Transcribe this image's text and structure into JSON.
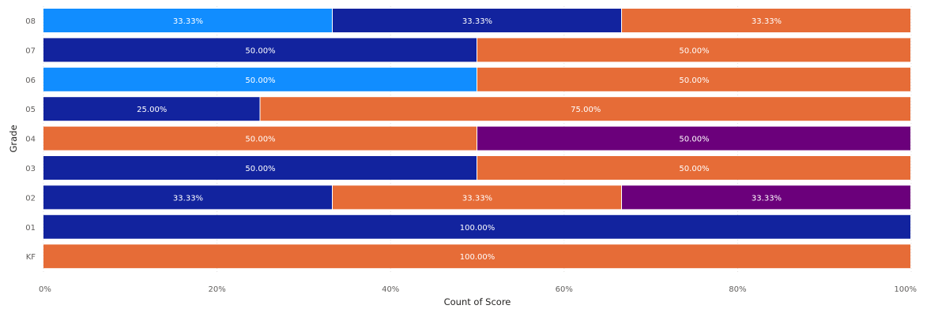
{
  "chart_data": {
    "type": "bar",
    "orientation": "horizontal",
    "stacked": "100%",
    "xlabel": "Count of Score",
    "ylabel": "Grade",
    "xlim": [
      0,
      100
    ],
    "x_ticks": [
      "0%",
      "20%",
      "40%",
      "60%",
      "80%",
      "100%"
    ],
    "grid": true,
    "legend": "none",
    "categories": [
      "08",
      "07",
      "06",
      "05",
      "04",
      "03",
      "02",
      "01",
      "KF"
    ],
    "rows": [
      {
        "segments": [
          {
            "value": 33.33,
            "label": "33.33%",
            "color": "#118dff"
          },
          {
            "value": 33.33,
            "label": "33.33%",
            "color": "#12239e"
          },
          {
            "value": 33.33,
            "label": "33.33%",
            "color": "#e66c37"
          }
        ]
      },
      {
        "segments": [
          {
            "value": 50.0,
            "label": "50.00%",
            "color": "#12239e"
          },
          {
            "value": 50.0,
            "label": "50.00%",
            "color": "#e66c37"
          }
        ]
      },
      {
        "segments": [
          {
            "value": 50.0,
            "label": "50.00%",
            "color": "#118dff"
          },
          {
            "value": 50.0,
            "label": "50.00%",
            "color": "#e66c37"
          }
        ]
      },
      {
        "segments": [
          {
            "value": 25.0,
            "label": "25.00%",
            "color": "#12239e"
          },
          {
            "value": 75.0,
            "label": "75.00%",
            "color": "#e66c37"
          }
        ]
      },
      {
        "segments": [
          {
            "value": 50.0,
            "label": "50.00%",
            "color": "#e66c37"
          },
          {
            "value": 50.0,
            "label": "50.00%",
            "color": "#6b007b"
          }
        ]
      },
      {
        "segments": [
          {
            "value": 50.0,
            "label": "50.00%",
            "color": "#12239e"
          },
          {
            "value": 50.0,
            "label": "50.00%",
            "color": "#e66c37"
          }
        ]
      },
      {
        "segments": [
          {
            "value": 33.33,
            "label": "33.33%",
            "color": "#12239e"
          },
          {
            "value": 33.33,
            "label": "33.33%",
            "color": "#e66c37"
          },
          {
            "value": 33.33,
            "label": "33.33%",
            "color": "#6b007b"
          }
        ]
      },
      {
        "segments": [
          {
            "value": 100.0,
            "label": "100.00%",
            "color": "#12239e"
          }
        ]
      },
      {
        "segments": [
          {
            "value": 100.0,
            "label": "100.00%",
            "color": "#e66c37"
          }
        ]
      }
    ]
  }
}
